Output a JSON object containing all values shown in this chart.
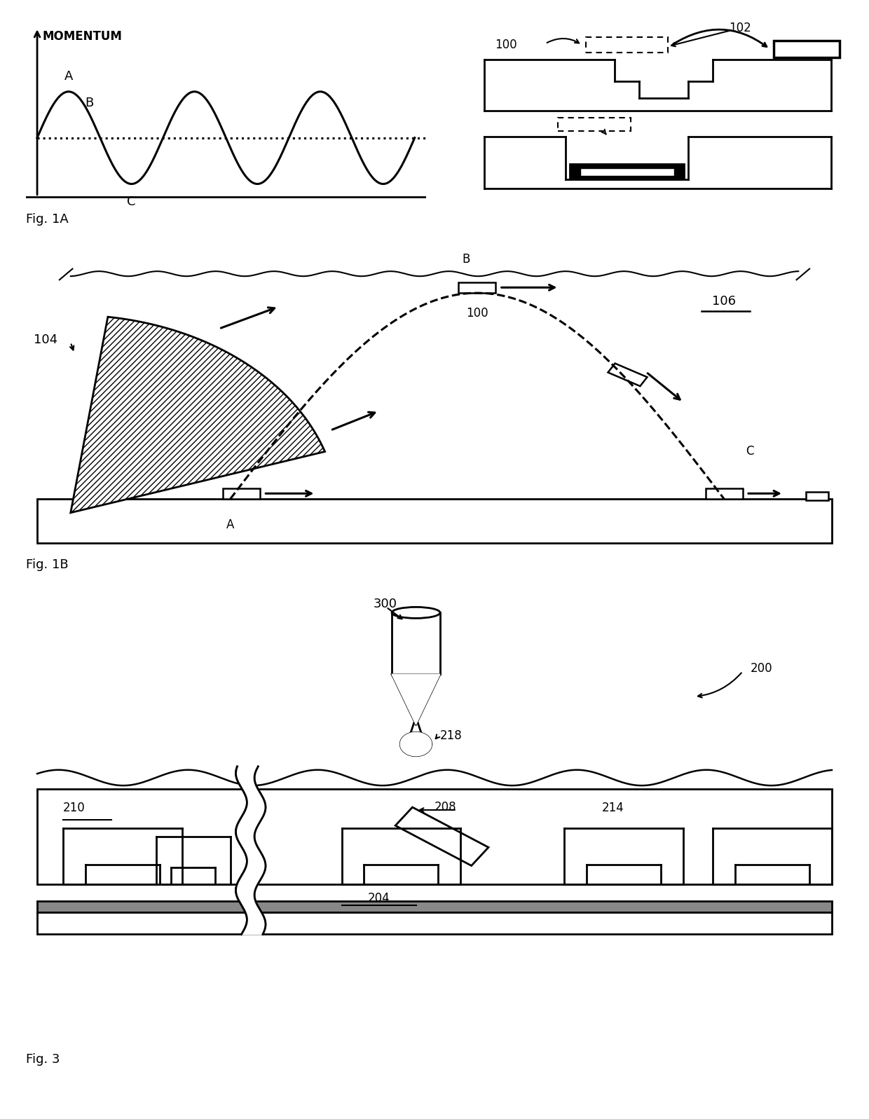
{
  "bg_color": "#ffffff",
  "fig_width": 12.4,
  "fig_height": 15.97,
  "fig1a_label": "Fig. 1A",
  "fig1b_label": "Fig. 1B",
  "fig3_label": "Fig. 3",
  "momentum_label": "MOMENTUM",
  "label_A": "A",
  "label_B": "B",
  "label_C": "C",
  "label_100": "100",
  "label_102": "102",
  "label_104": "104",
  "label_106": "106",
  "label_200": "200",
  "label_204": "204",
  "label_208": "208",
  "label_210": "210",
  "label_214": "214",
  "label_218": "218",
  "label_300": "300"
}
